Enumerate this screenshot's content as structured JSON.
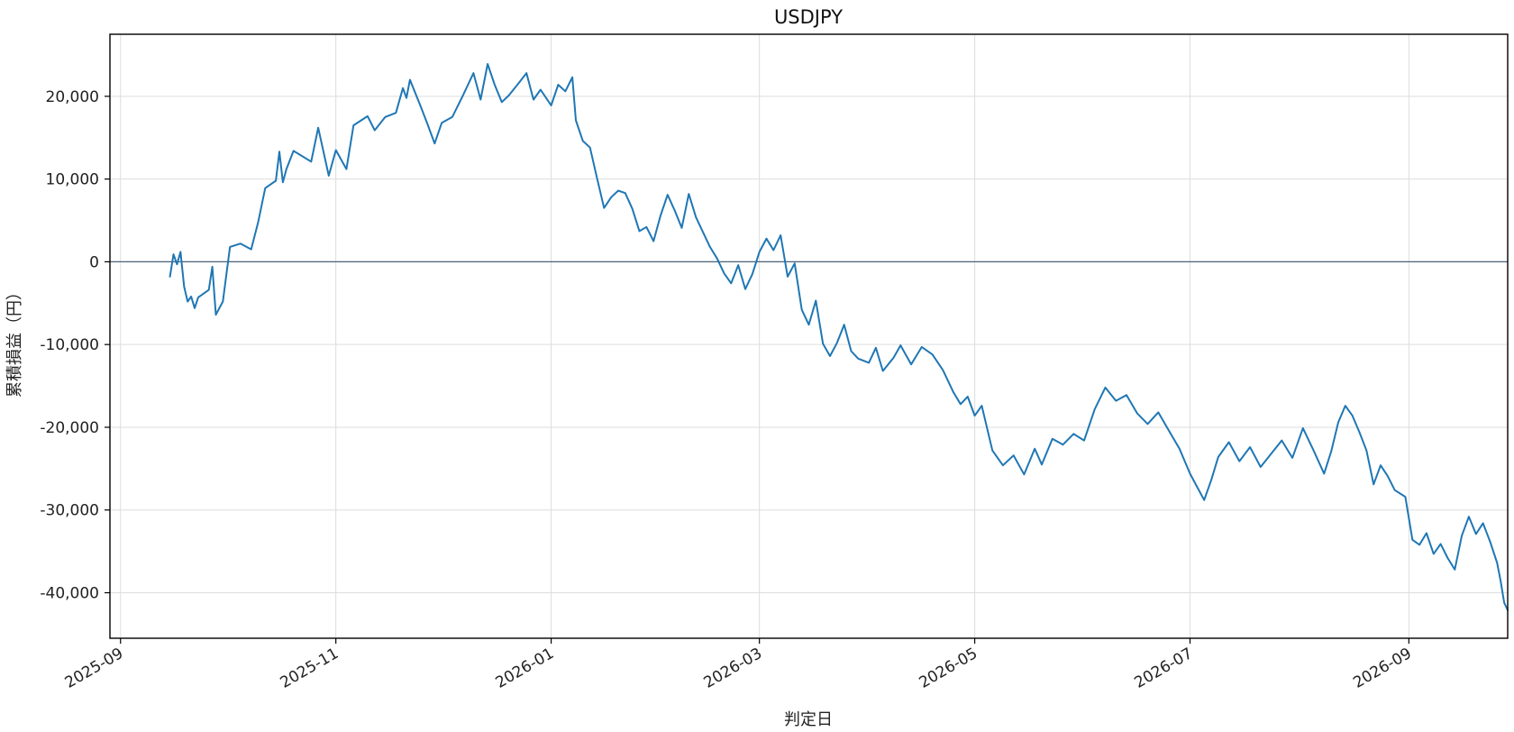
{
  "chart_data": {
    "type": "line",
    "title": "USDJPY",
    "xlabel": "判定日",
    "ylabel": "累積損益（円）",
    "x_range": [
      "2025-08-29",
      "2026-09-29"
    ],
    "ylim": [
      -45500,
      27500
    ],
    "x_ticks": [
      "2025-09",
      "2025-11",
      "2026-01",
      "2026-03",
      "2026-05",
      "2026-07",
      "2026-09"
    ],
    "y_ticks": [
      20000,
      10000,
      0,
      -10000,
      -20000,
      -30000,
      -40000
    ],
    "y_tick_labels": [
      "20,000",
      "10,000",
      "0",
      "-10,000",
      "-20,000",
      "-30,000",
      "-40,000"
    ],
    "grid": true,
    "baseline": 0,
    "colors": {
      "line": "#1f77b4",
      "baseline": "#4a6278",
      "grid": "#dddddd",
      "axis": "#000000"
    },
    "series": [
      {
        "values": [
          [
            "2025-09-15",
            -1800
          ],
          [
            "2025-09-16",
            900
          ],
          [
            "2025-09-17",
            -300
          ],
          [
            "2025-09-18",
            1200
          ],
          [
            "2025-09-19",
            -3000
          ],
          [
            "2025-09-20",
            -4800
          ],
          [
            "2025-09-21",
            -4200
          ],
          [
            "2025-09-22",
            -5600
          ],
          [
            "2025-09-23",
            -4300
          ],
          [
            "2025-09-26",
            -3400
          ],
          [
            "2025-09-27",
            -600
          ],
          [
            "2025-09-28",
            -6400
          ],
          [
            "2025-09-30",
            -4800
          ],
          [
            "2025-10-02",
            1800
          ],
          [
            "2025-10-05",
            2200
          ],
          [
            "2025-10-08",
            1500
          ],
          [
            "2025-10-10",
            4800
          ],
          [
            "2025-10-12",
            8900
          ],
          [
            "2025-10-15",
            9800
          ],
          [
            "2025-10-16",
            13300
          ],
          [
            "2025-10-17",
            9600
          ],
          [
            "2025-10-18",
            11200
          ],
          [
            "2025-10-20",
            13400
          ],
          [
            "2025-10-25",
            12100
          ],
          [
            "2025-10-27",
            16200
          ],
          [
            "2025-10-30",
            10400
          ],
          [
            "2025-11-01",
            13500
          ],
          [
            "2025-11-04",
            11200
          ],
          [
            "2025-11-06",
            16500
          ],
          [
            "2025-11-10",
            17600
          ],
          [
            "2025-11-12",
            15900
          ],
          [
            "2025-11-15",
            17500
          ],
          [
            "2025-11-18",
            18000
          ],
          [
            "2025-11-20",
            21000
          ],
          [
            "2025-11-21",
            19800
          ],
          [
            "2025-11-22",
            22000
          ],
          [
            "2025-11-25",
            18800
          ],
          [
            "2025-11-27",
            16600
          ],
          [
            "2025-11-29",
            14300
          ],
          [
            "2025-12-01",
            16800
          ],
          [
            "2025-12-04",
            17500
          ],
          [
            "2025-12-07",
            20100
          ],
          [
            "2025-12-10",
            22800
          ],
          [
            "2025-12-12",
            19600
          ],
          [
            "2025-12-14",
            23900
          ],
          [
            "2025-12-16",
            21400
          ],
          [
            "2025-12-18",
            19300
          ],
          [
            "2025-12-20",
            20100
          ],
          [
            "2025-12-23",
            21700
          ],
          [
            "2025-12-25",
            22800
          ],
          [
            "2025-12-27",
            19600
          ],
          [
            "2025-12-29",
            20800
          ],
          [
            "2026-01-01",
            18900
          ],
          [
            "2026-01-03",
            21400
          ],
          [
            "2026-01-05",
            20600
          ],
          [
            "2026-01-07",
            22300
          ],
          [
            "2026-01-08",
            17100
          ],
          [
            "2026-01-10",
            14600
          ],
          [
            "2026-01-12",
            13800
          ],
          [
            "2026-01-14",
            10100
          ],
          [
            "2026-01-16",
            6500
          ],
          [
            "2026-01-18",
            7800
          ],
          [
            "2026-01-20",
            8600
          ],
          [
            "2026-01-22",
            8300
          ],
          [
            "2026-01-24",
            6400
          ],
          [
            "2026-01-26",
            3700
          ],
          [
            "2026-01-28",
            4200
          ],
          [
            "2026-01-30",
            2500
          ],
          [
            "2026-02-01",
            5600
          ],
          [
            "2026-02-03",
            8100
          ],
          [
            "2026-02-05",
            6200
          ],
          [
            "2026-02-07",
            4100
          ],
          [
            "2026-02-09",
            8200
          ],
          [
            "2026-02-11",
            5400
          ],
          [
            "2026-02-13",
            3600
          ],
          [
            "2026-02-15",
            1800
          ],
          [
            "2026-02-17",
            400
          ],
          [
            "2026-02-19",
            -1400
          ],
          [
            "2026-02-21",
            -2600
          ],
          [
            "2026-02-23",
            -400
          ],
          [
            "2026-02-25",
            -3300
          ],
          [
            "2026-02-27",
            -1500
          ],
          [
            "2026-03-01",
            1200
          ],
          [
            "2026-03-03",
            2800
          ],
          [
            "2026-03-05",
            1400
          ],
          [
            "2026-03-07",
            3200
          ],
          [
            "2026-03-09",
            -1800
          ],
          [
            "2026-03-11",
            -200
          ],
          [
            "2026-03-13",
            -5800
          ],
          [
            "2026-03-15",
            -7600
          ],
          [
            "2026-03-17",
            -4700
          ],
          [
            "2026-03-19",
            -9900
          ],
          [
            "2026-03-21",
            -11400
          ],
          [
            "2026-03-23",
            -9800
          ],
          [
            "2026-03-25",
            -7600
          ],
          [
            "2026-03-27",
            -10800
          ],
          [
            "2026-03-29",
            -11700
          ],
          [
            "2026-04-01",
            -12200
          ],
          [
            "2026-04-03",
            -10400
          ],
          [
            "2026-04-05",
            -13200
          ],
          [
            "2026-04-08",
            -11600
          ],
          [
            "2026-04-10",
            -10100
          ],
          [
            "2026-04-13",
            -12400
          ],
          [
            "2026-04-16",
            -10300
          ],
          [
            "2026-04-19",
            -11200
          ],
          [
            "2026-04-22",
            -13100
          ],
          [
            "2026-04-25",
            -15800
          ],
          [
            "2026-04-27",
            -17200
          ],
          [
            "2026-04-29",
            -16300
          ],
          [
            "2026-05-01",
            -18600
          ],
          [
            "2026-05-03",
            -17400
          ],
          [
            "2026-05-06",
            -22800
          ],
          [
            "2026-05-09",
            -24600
          ],
          [
            "2026-05-12",
            -23400
          ],
          [
            "2026-05-15",
            -25700
          ],
          [
            "2026-05-18",
            -22600
          ],
          [
            "2026-05-20",
            -24500
          ],
          [
            "2026-05-23",
            -21400
          ],
          [
            "2026-05-26",
            -22100
          ],
          [
            "2026-05-29",
            -20800
          ],
          [
            "2026-06-01",
            -21600
          ],
          [
            "2026-06-04",
            -17800
          ],
          [
            "2026-06-07",
            -15200
          ],
          [
            "2026-06-10",
            -16800
          ],
          [
            "2026-06-13",
            -16100
          ],
          [
            "2026-06-16",
            -18300
          ],
          [
            "2026-06-19",
            -19600
          ],
          [
            "2026-06-22",
            -18200
          ],
          [
            "2026-06-25",
            -20400
          ],
          [
            "2026-06-28",
            -22600
          ],
          [
            "2026-07-01",
            -25600
          ],
          [
            "2026-07-03",
            -27200
          ],
          [
            "2026-07-05",
            -28800
          ],
          [
            "2026-07-07",
            -26400
          ],
          [
            "2026-07-09",
            -23600
          ],
          [
            "2026-07-12",
            -21800
          ],
          [
            "2026-07-15",
            -24100
          ],
          [
            "2026-07-18",
            -22400
          ],
          [
            "2026-07-21",
            -24800
          ],
          [
            "2026-07-24",
            -23200
          ],
          [
            "2026-07-27",
            -21600
          ],
          [
            "2026-07-30",
            -23700
          ],
          [
            "2026-08-02",
            -20100
          ],
          [
            "2026-08-05",
            -22800
          ],
          [
            "2026-08-08",
            -25600
          ],
          [
            "2026-08-10",
            -22900
          ],
          [
            "2026-08-12",
            -19400
          ],
          [
            "2026-08-14",
            -17400
          ],
          [
            "2026-08-16",
            -18600
          ],
          [
            "2026-08-18",
            -20600
          ],
          [
            "2026-08-20",
            -22800
          ],
          [
            "2026-08-22",
            -26900
          ],
          [
            "2026-08-24",
            -24600
          ],
          [
            "2026-08-26",
            -25900
          ],
          [
            "2026-08-28",
            -27600
          ],
          [
            "2026-08-31",
            -28400
          ],
          [
            "2026-09-02",
            -33600
          ],
          [
            "2026-09-04",
            -34200
          ],
          [
            "2026-09-06",
            -32800
          ],
          [
            "2026-09-08",
            -35300
          ],
          [
            "2026-09-10",
            -34100
          ],
          [
            "2026-09-12",
            -35800
          ],
          [
            "2026-09-14",
            -37200
          ],
          [
            "2026-09-16",
            -33100
          ],
          [
            "2026-09-18",
            -30800
          ],
          [
            "2026-09-20",
            -32900
          ],
          [
            "2026-09-22",
            -31600
          ],
          [
            "2026-09-24",
            -33800
          ],
          [
            "2026-09-26",
            -36400
          ],
          [
            "2026-09-27",
            -38600
          ],
          [
            "2026-09-28",
            -41200
          ],
          [
            "2026-09-29",
            -42100
          ]
        ]
      }
    ]
  }
}
